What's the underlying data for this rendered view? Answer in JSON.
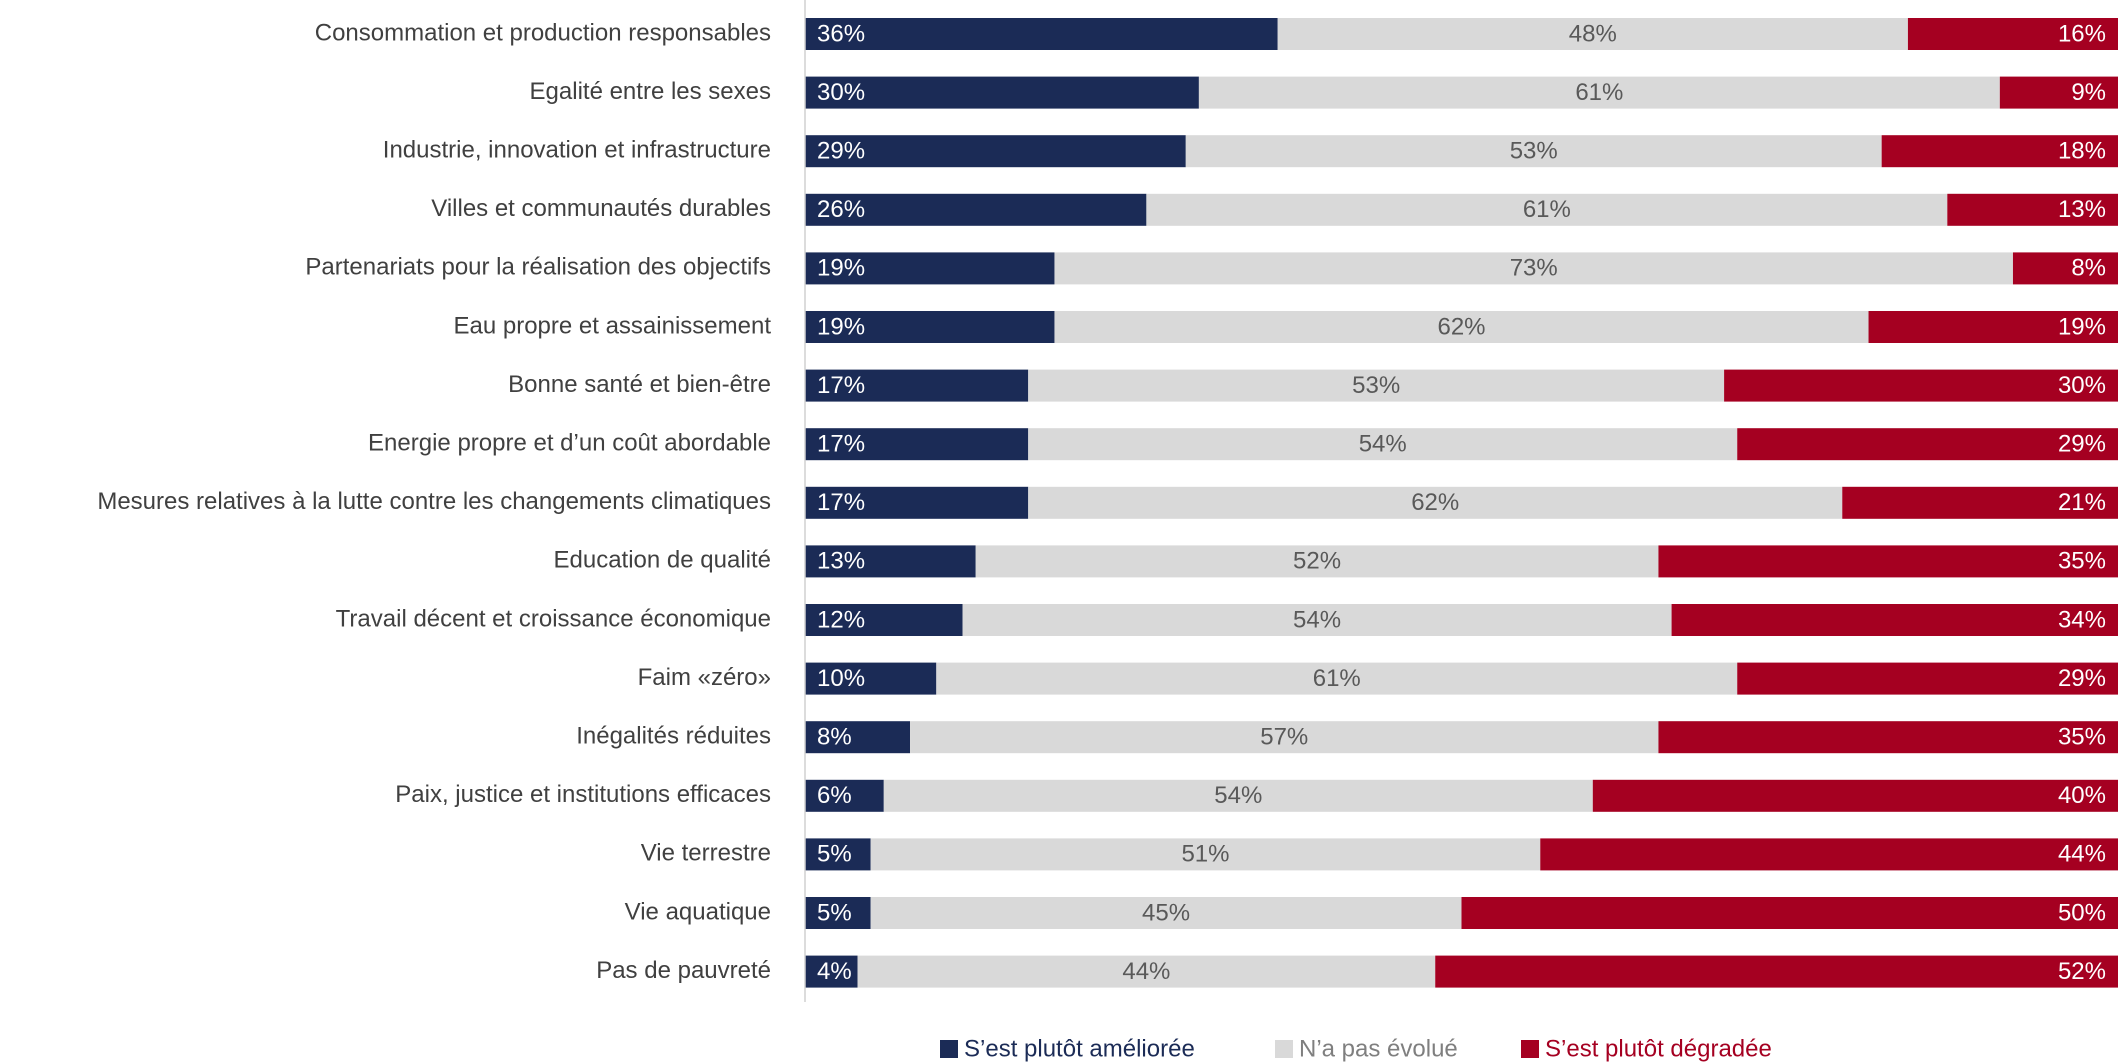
{
  "chart_data": {
    "type": "stacked_barh",
    "categories": [
      "Consommation et production responsables",
      "Egalité entre les sexes",
      "Industrie, innovation et infrastructure",
      "Villes et communautés durables",
      "Partenariats pour la réalisation des objectifs",
      "Eau propre et assainissement",
      "Bonne santé et bien-être",
      "Energie propre et d’un coût abordable",
      "Mesures relatives à la lutte contre les changements climatiques",
      "Education de qualité",
      "Travail décent et croissance économique",
      "Faim «zéro»",
      "Inégalités réduites",
      "Paix, justice et institutions efficaces",
      "Vie terrestre",
      "Vie aquatique",
      "Pas de pauvreté"
    ],
    "series": [
      {
        "name": "S’est plutôt améliorée",
        "color": "#1b2b56",
        "values": [
          36,
          30,
          29,
          26,
          19,
          19,
          17,
          17,
          17,
          13,
          12,
          10,
          8,
          6,
          5,
          5,
          4
        ],
        "value_labels": [
          "36%",
          "30%",
          "29%",
          "26%",
          "19%",
          "19%",
          "17%",
          "17%",
          "17%",
          "13%",
          "12%",
          "10%",
          "8%",
          "6%",
          "5%",
          "5%",
          "4%"
        ]
      },
      {
        "name": "N’a pas évolué",
        "color": "#d9d9d9",
        "values": [
          48,
          61,
          53,
          61,
          73,
          62,
          53,
          54,
          62,
          52,
          54,
          61,
          57,
          54,
          51,
          45,
          44
        ],
        "value_labels": [
          "48%",
          "61%",
          "53%",
          "61%",
          "73%",
          "62%",
          "53%",
          "54%",
          "62%",
          "52%",
          "54%",
          "61%",
          "57%",
          "54%",
          "51%",
          "45%",
          "44%"
        ]
      },
      {
        "name": "S’est plutôt dégradée",
        "color": "#a50021",
        "values": [
          16,
          9,
          18,
          13,
          8,
          19,
          30,
          29,
          21,
          35,
          34,
          29,
          35,
          40,
          44,
          50,
          52
        ],
        "value_labels": [
          "16%",
          "9%",
          "18%",
          "13%",
          "8%",
          "19%",
          "30%",
          "29%",
          "21%",
          "35%",
          "34%",
          "29%",
          "35%",
          "40%",
          "44%",
          "50%",
          "52%"
        ]
      }
    ],
    "xlim": [
      0,
      100
    ]
  }
}
